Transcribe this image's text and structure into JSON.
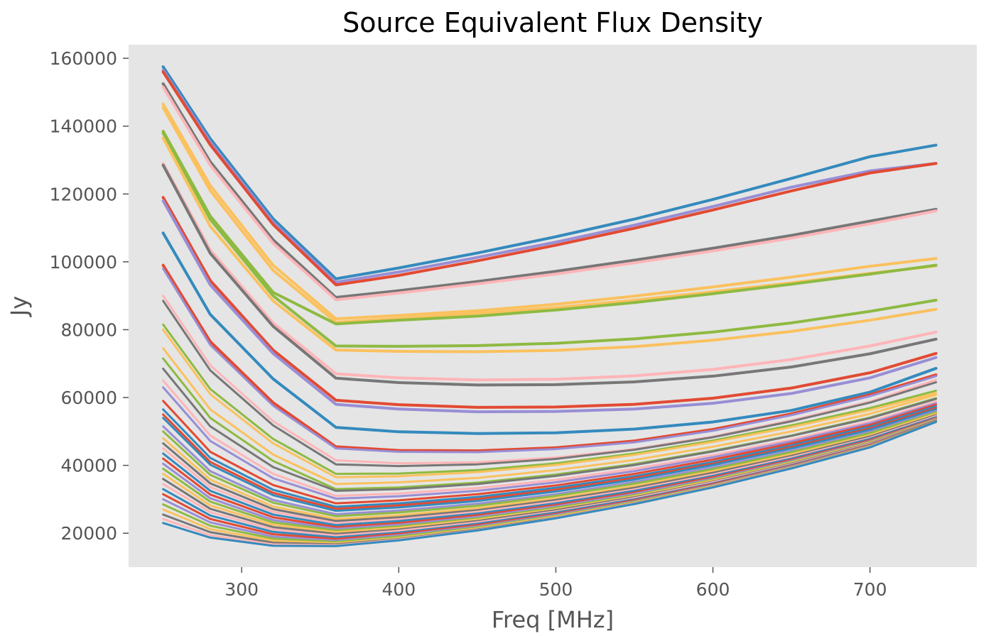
{
  "chart_data": {
    "type": "line",
    "title": "Source Equivalent Flux Density",
    "xlabel": "Freq [MHz]",
    "ylabel": "Jy",
    "xlim": [
      228,
      768
    ],
    "ylim": [
      10000,
      164000
    ],
    "x_ticks": [
      300,
      400,
      500,
      600,
      700
    ],
    "y_ticks": [
      20000,
      40000,
      60000,
      80000,
      100000,
      120000,
      140000,
      160000
    ],
    "x_tick_labels": [
      "300",
      "400",
      "500",
      "600",
      "700"
    ],
    "y_tick_labels": [
      "20000",
      "40000",
      "60000",
      "80000",
      "100000",
      "120000",
      "140000",
      "160000"
    ],
    "grid": false,
    "legend": "none",
    "background_color": "#e5e5e5",
    "colors": [
      "#348abd",
      "#988ed5",
      "#e24a33",
      "#777777",
      "#fbc15e",
      "#8eba42",
      "#ffb5b8"
    ],
    "x": [
      250,
      280,
      320,
      360,
      400,
      450,
      500,
      550,
      600,
      650,
      700,
      742
    ],
    "series": [
      {
        "color": "#348abd",
        "values": [
          157500,
          136300,
          112700,
          95000,
          98200,
          102600,
          107400,
          112600,
          118400,
          124600,
          131000,
          134400
        ]
      },
      {
        "color": "#988ed5",
        "values": [
          156500,
          135300,
          111700,
          94000,
          97000,
          101300,
          105800,
          110800,
          116300,
          122000,
          126800,
          129000
        ]
      },
      {
        "color": "#e24a33",
        "values": [
          156000,
          134500,
          111000,
          93200,
          96000,
          100300,
          104900,
          109900,
          115300,
          120900,
          126200,
          129000
        ]
      },
      {
        "color": "#777777",
        "values": [
          152500,
          129500,
          106500,
          89500,
          91500,
          94200,
          97200,
          100500,
          104000,
          107800,
          112000,
          115500
        ]
      },
      {
        "color": "#ffb5b8",
        "values": [
          151500,
          128500,
          105500,
          88800,
          90800,
          93500,
          96400,
          99700,
          103200,
          107000,
          111200,
          115000
        ]
      },
      {
        "color": "#fbc15e",
        "values": [
          146500,
          122500,
          99000,
          83200,
          84200,
          85600,
          87500,
          89900,
          92600,
          95500,
          98700,
          101000
        ]
      },
      {
        "color": "#fbc15e",
        "values": [
          145500,
          121000,
          97500,
          82200,
          83300,
          84800,
          86500,
          88700,
          91200,
          93800,
          96600,
          98800
        ]
      },
      {
        "color": "#8eba42",
        "values": [
          138500,
          113500,
          91000,
          81700,
          82800,
          84000,
          85800,
          88000,
          90600,
          93400,
          96400,
          99000
        ]
      },
      {
        "color": "#8eba42",
        "values": [
          138000,
          112500,
          90000,
          75200,
          75100,
          75300,
          76000,
          77300,
          79300,
          82000,
          85400,
          88700
        ]
      },
      {
        "color": "#fbc15e",
        "values": [
          136500,
          110500,
          88500,
          74000,
          73600,
          73500,
          73900,
          75000,
          76900,
          79500,
          82800,
          86000
        ]
      },
      {
        "color": "#ffb5b8",
        "values": [
          129000,
          103500,
          82000,
          67000,
          65800,
          65200,
          65400,
          66400,
          68300,
          71200,
          75200,
          79300
        ]
      },
      {
        "color": "#777777",
        "values": [
          128500,
          102500,
          81000,
          65700,
          64400,
          63700,
          63800,
          64600,
          66300,
          69000,
          72900,
          77200
        ]
      },
      {
        "color": "#e24a33",
        "values": [
          119000,
          94500,
          74000,
          59200,
          57900,
          57100,
          57200,
          58000,
          59800,
          62800,
          67300,
          73000
        ]
      },
      {
        "color": "#988ed5",
        "values": [
          118000,
          93200,
          73000,
          58000,
          56600,
          55800,
          55900,
          56600,
          58300,
          61200,
          65800,
          71800
        ]
      },
      {
        "color": "#348abd",
        "values": [
          108500,
          84500,
          65500,
          51200,
          49900,
          49400,
          49600,
          50700,
          52800,
          56200,
          61600,
          68600
        ]
      },
      {
        "color": "#e24a33",
        "values": [
          99000,
          76500,
          58500,
          45500,
          44400,
          44300,
          45200,
          47200,
          50600,
          55200,
          60800,
          66700
        ]
      },
      {
        "color": "#988ed5",
        "values": [
          98000,
          75500,
          57600,
          45000,
          44000,
          43900,
          44800,
          46800,
          50200,
          54800,
          60400,
          66300
        ]
      },
      {
        "color": "#ffb5b8",
        "values": [
          90000,
          69500,
          53000,
          41500,
          40600,
          40900,
          42300,
          44800,
          48500,
          53300,
          58800,
          65200
        ]
      },
      {
        "color": "#777777",
        "values": [
          88500,
          68000,
          51800,
          40300,
          39800,
          40300,
          41900,
          44600,
          48300,
          53000,
          58500,
          64500
        ]
      },
      {
        "color": "#8eba42",
        "values": [
          81500,
          62500,
          47800,
          37500,
          37600,
          38600,
          40600,
          43500,
          47300,
          51800,
          56900,
          62000
        ]
      },
      {
        "color": "#fbc15e",
        "values": [
          80000,
          61000,
          46500,
          36500,
          36800,
          38000,
          40100,
          43100,
          46900,
          51300,
          56300,
          61300
        ]
      },
      {
        "color": "#fbc15e",
        "values": [
          74500,
          56500,
          43200,
          34500,
          35000,
          36300,
          38600,
          41600,
          45500,
          50000,
          55200,
          60800
        ]
      },
      {
        "color": "#8eba42",
        "values": [
          71500,
          54000,
          41300,
          33000,
          33500,
          34900,
          37300,
          40400,
          44300,
          48800,
          54100,
          59800
        ]
      },
      {
        "color": "#777777",
        "values": [
          68500,
          51500,
          39500,
          32500,
          33000,
          34500,
          36900,
          40100,
          44100,
          48700,
          53900,
          59600
        ]
      },
      {
        "color": "#ffb5b8",
        "values": [
          65000,
          48800,
          37500,
          31000,
          31700,
          33300,
          35700,
          39000,
          43000,
          47600,
          52900,
          58800
        ]
      },
      {
        "color": "#988ed5",
        "values": [
          63000,
          47200,
          36200,
          30200,
          30900,
          32500,
          35000,
          38300,
          42400,
          47100,
          52400,
          58300
        ]
      },
      {
        "color": "#e24a33",
        "values": [
          59000,
          44000,
          34200,
          28800,
          29700,
          31500,
          34100,
          37500,
          41700,
          46500,
          51900,
          57900
        ]
      },
      {
        "color": "#348abd",
        "values": [
          56500,
          42200,
          32800,
          27800,
          28800,
          30700,
          33400,
          36800,
          41000,
          45900,
          51400,
          57400
        ]
      },
      {
        "color": "#e24a33",
        "values": [
          55000,
          41000,
          31900,
          27200,
          28200,
          30100,
          32800,
          36300,
          40500,
          45400,
          50900,
          56900
        ]
      },
      {
        "color": "#348abd",
        "values": [
          54000,
          40200,
          31200,
          26600,
          27600,
          29500,
          32300,
          35800,
          40100,
          45000,
          50500,
          56500
        ]
      },
      {
        "color": "#988ed5",
        "values": [
          51500,
          38300,
          29800,
          25600,
          26700,
          28700,
          31500,
          35100,
          39400,
          44300,
          49900,
          56000
        ]
      },
      {
        "color": "#8eba42",
        "values": [
          50000,
          37200,
          29000,
          25000,
          26100,
          28100,
          31000,
          34600,
          38900,
          43900,
          49500,
          55600
        ]
      },
      {
        "color": "#fbc15e",
        "values": [
          48000,
          35800,
          27900,
          24200,
          25300,
          27400,
          30300,
          33900,
          38300,
          43300,
          48900,
          55200
        ]
      },
      {
        "color": "#777777",
        "values": [
          46500,
          34700,
          27100,
          23600,
          24700,
          26800,
          29800,
          33400,
          37800,
          42800,
          48500,
          54800
        ]
      },
      {
        "color": "#ffb5b8",
        "values": [
          45000,
          33600,
          26300,
          23000,
          24100,
          26300,
          29300,
          32900,
          37300,
          42400,
          48100,
          54500
        ]
      },
      {
        "color": "#348abd",
        "values": [
          43500,
          32500,
          25500,
          22400,
          23600,
          25800,
          28800,
          32500,
          36900,
          42000,
          47800,
          54200
        ]
      },
      {
        "color": "#e24a33",
        "values": [
          42000,
          31400,
          24700,
          21800,
          23000,
          25300,
          28300,
          32000,
          36500,
          41600,
          47400,
          53900
        ]
      },
      {
        "color": "#988ed5",
        "values": [
          40500,
          30300,
          23900,
          21300,
          22500,
          24800,
          27900,
          31600,
          36100,
          41300,
          47100,
          53700
        ]
      },
      {
        "color": "#8eba42",
        "values": [
          39000,
          29300,
          23200,
          20800,
          22000,
          24400,
          27500,
          31200,
          35800,
          41000,
          46900,
          53600
        ]
      },
      {
        "color": "#fbc15e",
        "values": [
          37500,
          28200,
          22500,
          20300,
          21600,
          24000,
          27100,
          30900,
          35500,
          40800,
          46700,
          53500
        ]
      },
      {
        "color": "#777777",
        "values": [
          36000,
          27200,
          21800,
          19800,
          21100,
          23600,
          26800,
          30600,
          35200,
          40500,
          46500,
          53400
        ]
      },
      {
        "color": "#ffb5b8",
        "values": [
          34500,
          26200,
          21100,
          19300,
          20700,
          23200,
          26400,
          30300,
          35000,
          40300,
          46300,
          53300
        ]
      },
      {
        "color": "#348abd",
        "values": [
          33000,
          25200,
          20400,
          18800,
          20200,
          22800,
          26100,
          30000,
          34700,
          40100,
          46100,
          53200
        ]
      },
      {
        "color": "#e24a33",
        "values": [
          31500,
          24200,
          19700,
          18300,
          19800,
          22400,
          25700,
          29700,
          34500,
          39900,
          46000,
          53100
        ]
      },
      {
        "color": "#988ed5",
        "values": [
          30000,
          23200,
          19000,
          17800,
          19400,
          22000,
          25400,
          29400,
          34200,
          39700,
          45800,
          53000
        ]
      },
      {
        "color": "#8eba42",
        "values": [
          28500,
          22200,
          18400,
          17400,
          19000,
          21700,
          25100,
          29200,
          34000,
          39500,
          45700,
          53000
        ]
      },
      {
        "color": "#fbc15e",
        "values": [
          27000,
          21200,
          17800,
          17000,
          18600,
          21400,
          24900,
          29000,
          33900,
          39400,
          45600,
          52900
        ]
      },
      {
        "color": "#777777",
        "values": [
          25500,
          20300,
          17200,
          16700,
          18300,
          21100,
          24600,
          28800,
          33700,
          39300,
          45500,
          52900
        ]
      },
      {
        "color": "#ffb5b8",
        "values": [
          24200,
          19400,
          16700,
          16400,
          18100,
          20900,
          24500,
          28700,
          33600,
          39200,
          45400,
          52800
        ]
      },
      {
        "color": "#348abd",
        "values": [
          23000,
          18700,
          16300,
          16200,
          17900,
          20800,
          24400,
          28600,
          33500,
          39100,
          45300,
          52800
        ]
      }
    ]
  }
}
